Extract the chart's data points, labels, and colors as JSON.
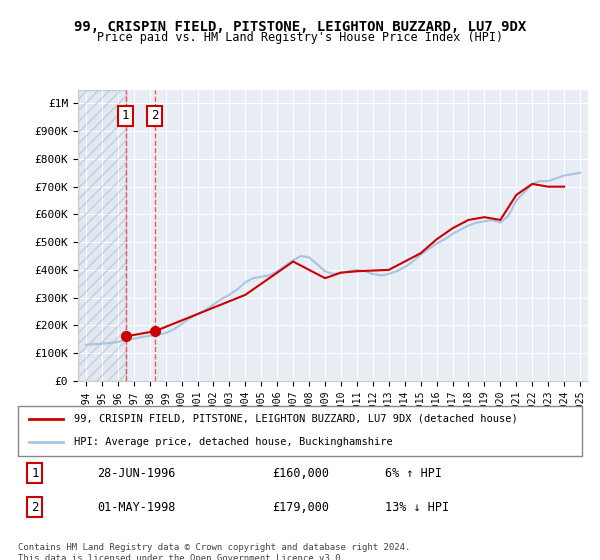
{
  "title": "99, CRISPIN FIELD, PITSTONE, LEIGHTON BUZZARD, LU7 9DX",
  "subtitle": "Price paid vs. HM Land Registry's House Price Index (HPI)",
  "sales": [
    {
      "date_num": 1996.49,
      "price": 160000,
      "label": "1"
    },
    {
      "date_num": 1998.33,
      "price": 179000,
      "label": "2"
    }
  ],
  "hpi_line_color": "#a8c4e0",
  "price_line_color": "#cc0000",
  "sale_dot_color": "#cc0000",
  "annotation_box_color": "#cc0000",
  "vline_color": "#ff4444",
  "background_hatch_color": "#d0d8e8",
  "legend_entries": [
    "99, CRISPIN FIELD, PITSTONE, LEIGHTON BUZZARD, LU7 9DX (detached house)",
    "HPI: Average price, detached house, Buckinghamshire"
  ],
  "table_rows": [
    {
      "num": "1",
      "date": "28-JUN-1996",
      "price": "£160,000",
      "change": "6% ↑ HPI"
    },
    {
      "num": "2",
      "date": "01-MAY-1998",
      "price": "£179,000",
      "change": "13% ↓ HPI"
    }
  ],
  "footnote": "Contains HM Land Registry data © Crown copyright and database right 2024.\nThis data is licensed under the Open Government Licence v3.0.",
  "ylim": [
    0,
    1050000
  ],
  "xlim": [
    1993.5,
    2025.5
  ],
  "yticks": [
    0,
    100000,
    200000,
    300000,
    400000,
    500000,
    600000,
    700000,
    800000,
    900000,
    1000000
  ],
  "ytick_labels": [
    "£0",
    "£100K",
    "£200K",
    "£300K",
    "£400K",
    "£500K",
    "£600K",
    "£700K",
    "£800K",
    "£900K",
    "£1M"
  ],
  "xticks": [
    1994,
    1995,
    1996,
    1997,
    1998,
    1999,
    2000,
    2001,
    2002,
    2003,
    2004,
    2005,
    2006,
    2007,
    2008,
    2009,
    2010,
    2011,
    2012,
    2013,
    2014,
    2015,
    2016,
    2017,
    2018,
    2019,
    2020,
    2021,
    2022,
    2023,
    2024,
    2025
  ],
  "hpi_x": [
    1994,
    1994.5,
    1995,
    1995.5,
    1996,
    1996.49,
    1997,
    1997.5,
    1998,
    1998.33,
    1999,
    1999.5,
    2000,
    2000.5,
    2001,
    2001.5,
    2002,
    2002.5,
    2003,
    2003.5,
    2004,
    2004.5,
    2005,
    2005.5,
    2006,
    2006.5,
    2007,
    2007.5,
    2008,
    2008.5,
    2009,
    2009.5,
    2010,
    2010.5,
    2011,
    2011.5,
    2012,
    2012.5,
    2013,
    2013.5,
    2014,
    2014.5,
    2015,
    2015.5,
    2016,
    2016.5,
    2017,
    2017.5,
    2018,
    2018.5,
    2019,
    2019.5,
    2020,
    2020.5,
    2021,
    2021.5,
    2022,
    2022.5,
    2023,
    2023.5,
    2024,
    2024.5,
    2025
  ],
  "hpi_y": [
    130000,
    132000,
    134000,
    136000,
    140000,
    148000,
    152000,
    158000,
    162000,
    165000,
    172000,
    185000,
    205000,
    225000,
    240000,
    255000,
    275000,
    295000,
    310000,
    330000,
    355000,
    370000,
    375000,
    380000,
    395000,
    415000,
    435000,
    450000,
    445000,
    420000,
    395000,
    385000,
    390000,
    395000,
    400000,
    395000,
    385000,
    380000,
    385000,
    395000,
    410000,
    430000,
    455000,
    475000,
    495000,
    510000,
    530000,
    545000,
    560000,
    570000,
    575000,
    580000,
    570000,
    595000,
    650000,
    680000,
    710000,
    720000,
    720000,
    730000,
    740000,
    745000,
    750000
  ],
  "price_x": [
    1996.49,
    1998.33,
    2004,
    2007,
    2009,
    2010,
    2011,
    2013,
    2015,
    2016,
    2017,
    2018,
    2019,
    2020,
    2021,
    2022,
    2023,
    2024
  ],
  "price_y": [
    160000,
    179000,
    310000,
    430000,
    370000,
    390000,
    395000,
    400000,
    460000,
    510000,
    550000,
    580000,
    590000,
    580000,
    670000,
    710000,
    700000,
    700000
  ]
}
